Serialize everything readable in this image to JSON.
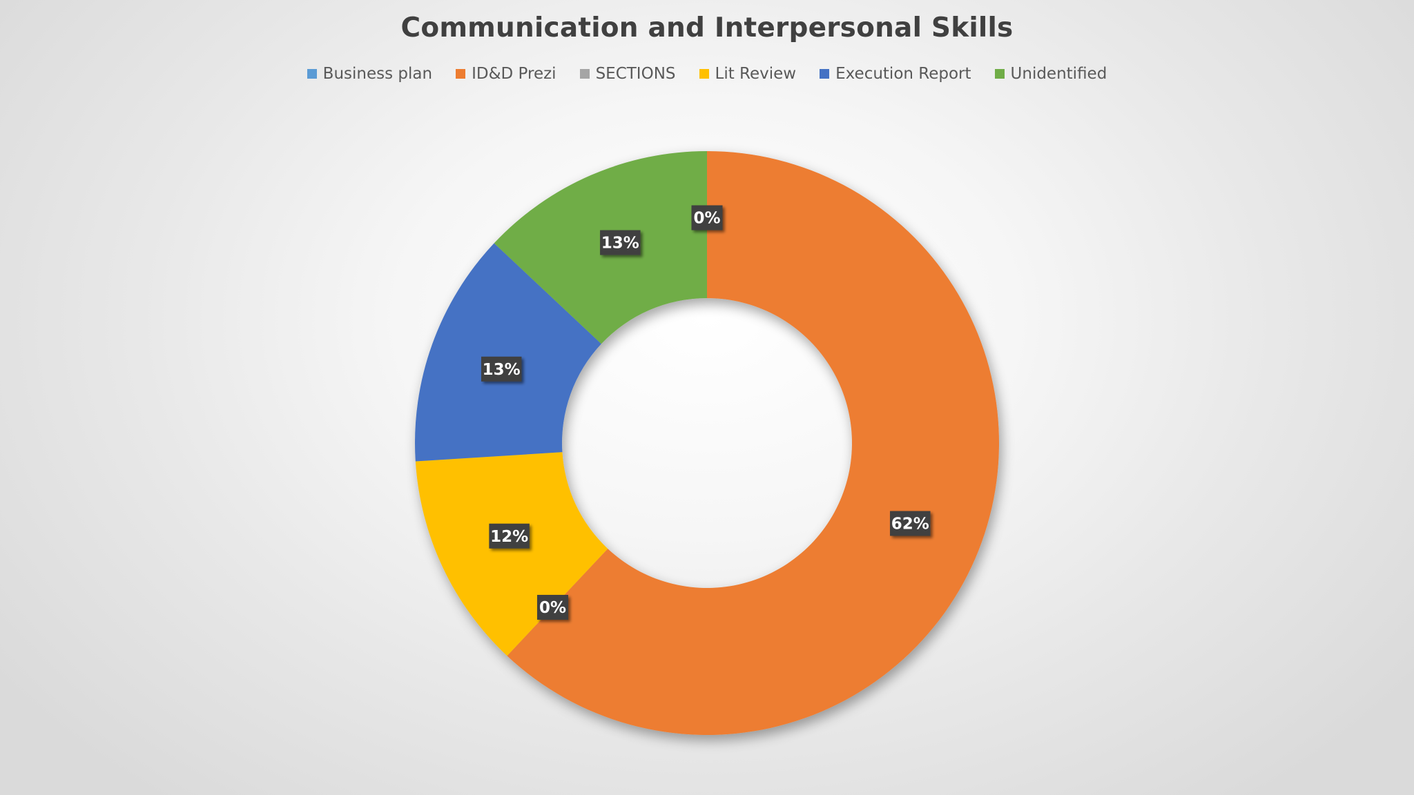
{
  "chart_data": {
    "type": "pie",
    "style": "donut",
    "title": "Communication and Interpersonal Skills",
    "legend_position": "top",
    "categories": [
      "Business plan",
      "ID&D Prezi",
      "SECTIONS",
      "Lit Review",
      "Execution Report",
      "Unidentified"
    ],
    "values": [
      0,
      62,
      0,
      12,
      13,
      13
    ],
    "data_labels": [
      "0%",
      "62%",
      "0%",
      "12%",
      "13%",
      "13%"
    ],
    "colors": [
      "#5b9bd5",
      "#ed7d31",
      "#a5a5a5",
      "#ffc000",
      "#4472c4",
      "#70ad47"
    ],
    "label_background": "#404040"
  }
}
